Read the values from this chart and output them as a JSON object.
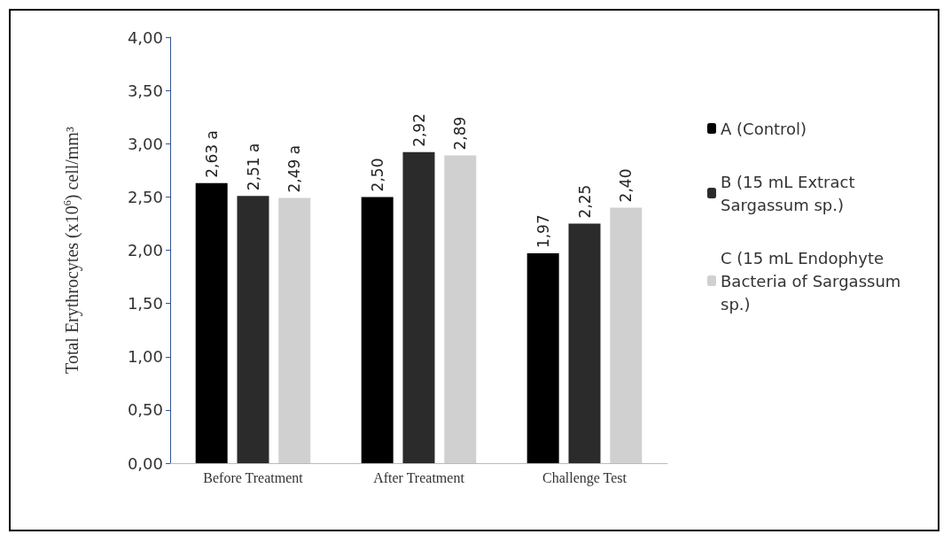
{
  "chart_data": {
    "type": "bar",
    "ylabel": "Total Erythrocytes (x10$^{6}$) cell/mm³",
    "categories": [
      "Before Treatment",
      "After Treatment",
      "Challenge Test"
    ],
    "series": [
      {
        "name": "A (Control)",
        "color": "#000000",
        "values": [
          2.63,
          2.5,
          1.97
        ],
        "value_labels": [
          "2,63 a",
          "2,50",
          "1,97"
        ]
      },
      {
        "name": "B (15 mL Extract Sargassum sp.)",
        "color": "#2b2b2b",
        "values": [
          2.51,
          2.92,
          2.25
        ],
        "value_labels": [
          "2,51 a",
          "2,92",
          "2,25"
        ]
      },
      {
        "name": "C (15 mL Endophyte Bacteria of Sargassum sp.)",
        "color": "#d0d0d0",
        "values": [
          2.49,
          2.89,
          2.4
        ],
        "value_labels": [
          "2,49 a",
          "2,89",
          "2,40"
        ]
      }
    ],
    "ylim": [
      0,
      4
    ],
    "yticks": [
      {
        "value": 0,
        "label": "0,00"
      },
      {
        "value": 0.5,
        "label": "0,50"
      },
      {
        "value": 1,
        "label": "1,00"
      },
      {
        "value": 1.5,
        "label": "1,50"
      },
      {
        "value": 2,
        "label": "2,00"
      },
      {
        "value": 2.5,
        "label": "2,50"
      },
      {
        "value": 3,
        "label": "3,00"
      },
      {
        "value": 3.5,
        "label": "3,50"
      },
      {
        "value": 4,
        "label": "4,00"
      }
    ],
    "grid": false,
    "legend": "right"
  }
}
